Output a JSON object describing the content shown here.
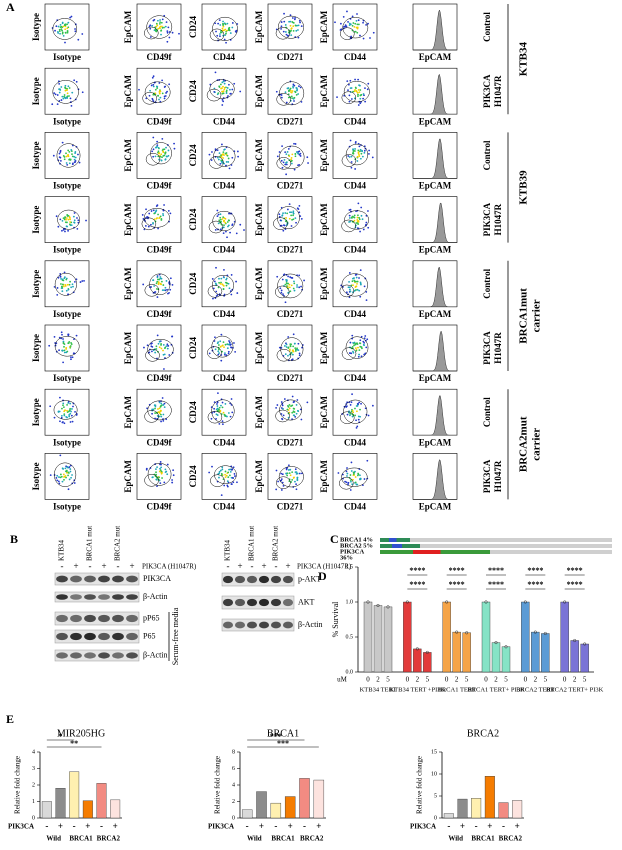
{
  "panelA": {
    "label": "A",
    "columns": [
      {
        "y": "Isotype",
        "x": "Isotype"
      },
      {
        "y": "EpCAM",
        "x": "CD49f"
      },
      {
        "y": "CD24",
        "x": "CD44"
      },
      {
        "y": "EpCAM",
        "x": "CD271"
      },
      {
        "y": "EpCAM",
        "x": "CD44"
      },
      {
        "x": "EpCAM"
      }
    ],
    "rows": [
      [
        "Control"
      ],
      [
        "PIK3CA",
        "H1047R"
      ],
      [
        "Control"
      ],
      [
        "PIK3CA",
        "H1047R"
      ],
      [
        "Control"
      ],
      [
        "PIK3CA",
        "H1047R"
      ],
      [
        "Control"
      ],
      [
        "PIK3CA",
        "H1047R"
      ]
    ],
    "groups": [
      [
        "KTB34"
      ],
      [
        "KTB39"
      ],
      [
        "BRCA1mut",
        "carrier"
      ],
      [
        "BRCA2mut",
        "carrier"
      ]
    ]
  },
  "panelB": {
    "label": "B",
    "left": {
      "headers": [
        "KTB34",
        "BRCA1 mut",
        "BRCA2 mut"
      ],
      "treatment": "PIK3CA (H1047R)",
      "signs": [
        "-",
        "+",
        "-",
        "+",
        "-",
        "+"
      ],
      "bands": [
        "PIK3CA",
        "β-Actin",
        "pP65",
        "P65",
        "β-Actin"
      ],
      "condition": "Serum-free media"
    },
    "right": {
      "headers": [
        "KTB34",
        "BRCA1 mut",
        "BRCA2 mut"
      ],
      "treatment": "PIK3CA (H1047R)",
      "signs": [
        "-",
        "+",
        "-",
        "+",
        "-",
        "+"
      ],
      "bands": [
        "p-AKT",
        "AKT",
        "β-Actin"
      ]
    }
  },
  "panelC": {
    "label": "C",
    "tracks": [
      "BRCA1 4%",
      "BRCA2 5%",
      "PIK3CA"
    ],
    "note": "36%"
  },
  "chart_data": [
    {
      "type": "bar",
      "panel_label": "D",
      "ylabel": "% Survival",
      "xlabel": "uM",
      "categories": [
        "0",
        "2",
        "5"
      ],
      "ylim": [
        0,
        1.5
      ],
      "yticks": [
        {
          "value": 0,
          "label": "0.0"
        },
        {
          "value": 0.5,
          "label": "0.5"
        },
        {
          "value": 1,
          "label": "1.0"
        },
        {
          "value": 1.5,
          "label": "1.5"
        }
      ],
      "series": [
        {
          "name": "KTB34 TERT",
          "color": "#c8c8c8",
          "values": [
            1.0,
            0.95,
            0.93
          ]
        },
        {
          "name": "KTB34 TERT +PI3K",
          "color": "#e23b3b",
          "values": [
            1.0,
            0.33,
            0.28
          ]
        },
        {
          "name": "BRCA1 TERT",
          "color": "#f5a448",
          "values": [
            1.0,
            0.57,
            0.56
          ]
        },
        {
          "name": "BRCA1 TERT+ PI3K",
          "color": "#86e3c6",
          "values": [
            1.0,
            0.42,
            0.36
          ]
        },
        {
          "name": "BRCA2 TERT",
          "color": "#5b9bd5",
          "values": [
            1.0,
            0.57,
            0.55
          ]
        },
        {
          "name": "BRCA2 TERT+ PI3K",
          "color": "#7a74d6",
          "values": [
            1.0,
            0.45,
            0.4
          ]
        }
      ],
      "annotations": [
        "****",
        "****",
        "****",
        "****",
        "****",
        "****",
        "****",
        "****",
        "****",
        "****"
      ]
    },
    {
      "type": "bar",
      "panel_label": "E",
      "title": "MIR205HG",
      "ylabel": "Relative fold change",
      "xlabel": "PIK3CA",
      "categories": [
        "-",
        "+",
        "-",
        "+",
        "-",
        "+"
      ],
      "groups": [
        "Wild",
        "BRCA1",
        "BRCA2"
      ],
      "colors": [
        "#d9d9d9",
        "#8c8c8c",
        "#fff0b0",
        "#f57c00",
        "#f28b82",
        "#fde3df"
      ],
      "values": [
        1.0,
        1.8,
        2.8,
        1.05,
        2.1,
        1.1
      ],
      "ylim": [
        0,
        4
      ],
      "yticks": [
        0,
        1,
        2,
        3,
        4
      ],
      "annotations": [
        "*",
        "**"
      ]
    },
    {
      "type": "bar",
      "title": "BRCA1",
      "ylabel": "Relative fold change",
      "xlabel": "PIK3CA",
      "categories": [
        "-",
        "+",
        "-",
        "+",
        "-",
        "+"
      ],
      "groups": [
        "Wild",
        "BRCA1",
        "BRCA2"
      ],
      "colors": [
        "#d9d9d9",
        "#8c8c8c",
        "#fff0b0",
        "#f57c00",
        "#f28b82",
        "#fde3df"
      ],
      "values": [
        1.0,
        3.2,
        1.8,
        2.6,
        4.8,
        4.6
      ],
      "ylim": [
        0,
        8
      ],
      "yticks": [
        0,
        2,
        4,
        6,
        8
      ],
      "annotations": [
        "***",
        "***"
      ]
    },
    {
      "type": "bar",
      "title": "BRCA2",
      "ylabel": "Relative fold change",
      "xlabel": "PIK3CA",
      "categories": [
        "-",
        "+",
        "-",
        "+",
        "-",
        "+"
      ],
      "groups": [
        "Wild",
        "BRCA1",
        "BRCA2"
      ],
      "colors": [
        "#d9d9d9",
        "#8c8c8c",
        "#fff0b0",
        "#f57c00",
        "#f28b82",
        "#fde3df"
      ],
      "values": [
        1.0,
        4.3,
        4.5,
        9.5,
        3.5,
        4.0
      ],
      "ylim": [
        0,
        15
      ],
      "yticks": [
        0,
        5,
        10,
        15
      ],
      "annotations": []
    }
  ]
}
